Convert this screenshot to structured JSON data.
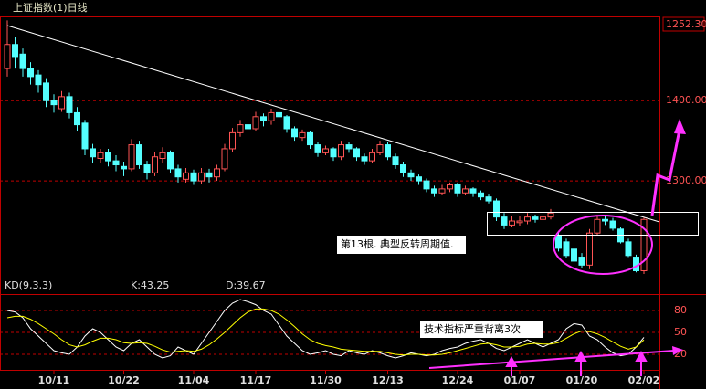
{
  "chart_data": [
    {
      "type": "candlestick",
      "title": "上证指数(1)日线",
      "price_label": "1252.30",
      "categories": [
        null,
        null,
        null,
        null,
        null,
        null,
        "10/11",
        null,
        null,
        null,
        null,
        null,
        null,
        null,
        null,
        "10/22",
        null,
        null,
        null,
        null,
        null,
        null,
        null,
        null,
        "11/04",
        null,
        null,
        null,
        null,
        null,
        null,
        null,
        "11/17",
        null,
        null,
        null,
        null,
        null,
        null,
        null,
        null,
        "11/30",
        null,
        null,
        null,
        null,
        null,
        null,
        null,
        "12/13",
        null,
        null,
        null,
        null,
        null,
        null,
        null,
        null,
        "12/24",
        null,
        null,
        null,
        null,
        null,
        null,
        null,
        "01/07",
        null,
        null,
        null,
        null,
        null,
        null,
        null,
        "01/20",
        null,
        null,
        null,
        null,
        null,
        null,
        null,
        "02/02"
      ],
      "open": [
        1440,
        1470,
        1458,
        1440,
        1432,
        1422,
        1400,
        1390,
        1405,
        1385,
        1372,
        1340,
        1328,
        1335,
        1325,
        1318,
        1315,
        1345,
        1320,
        1310,
        1328,
        1335,
        1315,
        1302,
        1310,
        1300,
        1310,
        1305,
        1315,
        1340,
        1360,
        1370,
        1365,
        1380,
        1375,
        1385,
        1380,
        1365,
        1354,
        1360,
        1345,
        1335,
        1340,
        1330,
        1345,
        1340,
        1330,
        1325,
        1335,
        1345,
        1330,
        1320,
        1310,
        1305,
        1300,
        1290,
        1285,
        1290,
        1295,
        1285,
        1290,
        1285,
        1280,
        1275,
        1255,
        1245,
        1248,
        1250,
        1255,
        1252,
        1255,
        1232,
        1224,
        1215,
        1205,
        1195,
        1235,
        1252,
        1250,
        1240,
        1224,
        1205,
        1188
      ],
      "high": [
        1500,
        1480,
        1465,
        1448,
        1438,
        1428,
        1408,
        1412,
        1410,
        1392,
        1376,
        1346,
        1340,
        1340,
        1332,
        1324,
        1352,
        1350,
        1325,
        1336,
        1342,
        1338,
        1320,
        1316,
        1314,
        1316,
        1315,
        1320,
        1346,
        1366,
        1376,
        1374,
        1386,
        1384,
        1390,
        1388,
        1382,
        1368,
        1364,
        1362,
        1348,
        1344,
        1342,
        1350,
        1348,
        1342,
        1334,
        1340,
        1350,
        1348,
        1334,
        1324,
        1314,
        1308,
        1303,
        1294,
        1295,
        1298,
        1298,
        1294,
        1292,
        1288,
        1284,
        1278,
        1260,
        1256,
        1256,
        1260,
        1258,
        1260,
        1265,
        1236,
        1228,
        1220,
        1210,
        1240,
        1256,
        1258,
        1254,
        1242,
        1228,
        1208,
        1254
      ],
      "low": [
        1430,
        1440,
        1430,
        1420,
        1410,
        1392,
        1385,
        1386,
        1378,
        1362,
        1332,
        1322,
        1322,
        1318,
        1312,
        1306,
        1312,
        1315,
        1302,
        1306,
        1322,
        1310,
        1298,
        1298,
        1295,
        1296,
        1298,
        1300,
        1312,
        1336,
        1355,
        1358,
        1362,
        1368,
        1370,
        1374,
        1360,
        1350,
        1350,
        1340,
        1330,
        1332,
        1325,
        1326,
        1335,
        1325,
        1320,
        1322,
        1332,
        1326,
        1315,
        1305,
        1300,
        1295,
        1286,
        1280,
        1282,
        1286,
        1280,
        1282,
        1280,
        1276,
        1272,
        1250,
        1240,
        1242,
        1244,
        1246,
        1248,
        1250,
        1252,
        1212,
        1204,
        1198,
        1192,
        1190,
        1232,
        1245,
        1238,
        1222,
        1205,
        1186,
        1184
      ],
      "close": [
        1470,
        1455,
        1440,
        1430,
        1420,
        1400,
        1395,
        1405,
        1385,
        1370,
        1340,
        1330,
        1335,
        1325,
        1320,
        1315,
        1345,
        1320,
        1310,
        1330,
        1335,
        1315,
        1305,
        1310,
        1300,
        1310,
        1305,
        1315,
        1340,
        1360,
        1370,
        1365,
        1380,
        1375,
        1385,
        1380,
        1365,
        1355,
        1360,
        1345,
        1335,
        1340,
        1330,
        1345,
        1340,
        1330,
        1325,
        1335,
        1345,
        1330,
        1320,
        1310,
        1305,
        1300,
        1290,
        1285,
        1290,
        1295,
        1285,
        1290,
        1285,
        1280,
        1275,
        1255,
        1245,
        1250,
        1250,
        1255,
        1252,
        1255,
        1260,
        1216,
        1207,
        1200,
        1195,
        1235,
        1252,
        1250,
        1241,
        1224,
        1207,
        1188,
        1252
      ],
      "up_color": "#ff5454",
      "down_color": "#54ffff",
      "ylim": [
        1184,
        1505
      ],
      "yticks": [
        {
          "value": 1400,
          "label": "1400.00"
        },
        {
          "value": 1300,
          "label": "1300.00"
        }
      ],
      "grid": true,
      "annotations": [
        "第13根. 典型反转周期值."
      ]
    },
    {
      "type": "line",
      "title": "KD(9,3,3)",
      "series": [
        {
          "name": "K:43.25",
          "color": "#ffffff",
          "values": [
            80,
            78,
            70,
            55,
            45,
            35,
            25,
            22,
            20,
            30,
            45,
            55,
            50,
            40,
            30,
            25,
            35,
            40,
            30,
            20,
            15,
            18,
            30,
            25,
            20,
            35,
            50,
            65,
            80,
            90,
            95,
            92,
            88,
            80,
            75,
            60,
            45,
            35,
            25,
            20,
            22,
            25,
            20,
            18,
            25,
            22,
            20,
            25,
            22,
            18,
            15,
            18,
            22,
            20,
            18,
            20,
            25,
            28,
            30,
            35,
            38,
            40,
            35,
            28,
            25,
            30,
            35,
            40,
            35,
            30,
            35,
            40,
            55,
            62,
            60,
            45,
            40,
            30,
            22,
            18,
            20,
            30,
            43.25
          ]
        },
        {
          "name": "D:39.67",
          "color": "#ffff00",
          "values": [
            70,
            72,
            72,
            68,
            62,
            55,
            48,
            40,
            33,
            30,
            33,
            38,
            42,
            42,
            40,
            36,
            35,
            36,
            35,
            31,
            26,
            23,
            24,
            25,
            24,
            27,
            33,
            41,
            50,
            60,
            70,
            78,
            82,
            82,
            80,
            75,
            67,
            58,
            48,
            40,
            35,
            32,
            30,
            27,
            26,
            25,
            24,
            24,
            24,
            22,
            20,
            19,
            20,
            20,
            19,
            19,
            20,
            22,
            25,
            28,
            31,
            34,
            35,
            33,
            30,
            30,
            31,
            34,
            35,
            34,
            34,
            36,
            42,
            48,
            52,
            51,
            48,
            43,
            37,
            31,
            27,
            30,
            39.67
          ]
        }
      ],
      "ylim": [
        0,
        100
      ],
      "yticks": [
        80,
        50,
        20
      ],
      "annotations": [
        "技术指标严重背离3次"
      ]
    }
  ]
}
